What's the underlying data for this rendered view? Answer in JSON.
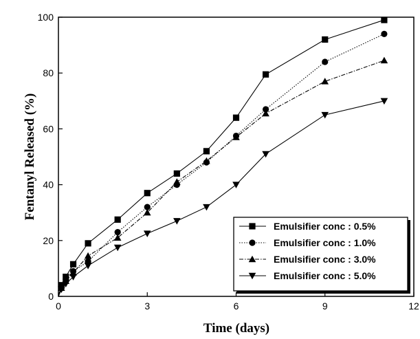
{
  "chart_data": {
    "type": "line",
    "title": "",
    "xlabel": "Time (days)",
    "ylabel": "Fentanyl Released (%)",
    "xlim": [
      0,
      12
    ],
    "ylim": [
      0,
      100
    ],
    "xticks": [
      0,
      3,
      6,
      9,
      12
    ],
    "yticks": [
      0,
      20,
      40,
      60,
      80,
      100
    ],
    "grid": false,
    "legend_position": "bottom-right",
    "series": [
      {
        "name": "Emulsifier conc : 0.5%",
        "marker": "square",
        "line_style": "solid",
        "color": "#000000",
        "x": [
          0,
          0.1,
          0.25,
          0.5,
          1,
          2,
          3,
          4,
          5,
          6,
          7,
          9,
          11
        ],
        "y": [
          0,
          4,
          7,
          11.5,
          19,
          27.5,
          37,
          44,
          52,
          64,
          79.5,
          92,
          99
        ]
      },
      {
        "name": "Emulsifier conc : 1.0%",
        "marker": "circle",
        "line_style": "dotted",
        "color": "#000000",
        "x": [
          0,
          0.1,
          0.25,
          0.5,
          1,
          2,
          3,
          4,
          5,
          6,
          7,
          9,
          11
        ],
        "y": [
          0,
          3,
          6,
          9,
          12.5,
          23,
          32,
          40,
          48,
          57.5,
          67,
          84,
          94
        ]
      },
      {
        "name": "Emulsifier conc : 3.0%",
        "marker": "triangle-up",
        "line_style": "dashdot",
        "color": "#000000",
        "x": [
          0,
          0.1,
          0.25,
          0.5,
          1,
          2,
          3,
          4,
          5,
          6,
          7,
          9,
          11
        ],
        "y": [
          0,
          3,
          5.5,
          8.5,
          14.5,
          21,
          30,
          41,
          48.5,
          57,
          65.5,
          77,
          84.5
        ]
      },
      {
        "name": "Emulsifier conc : 5.0%",
        "marker": "triangle-down",
        "line_style": "solid",
        "color": "#000000",
        "x": [
          0,
          0.1,
          0.25,
          0.5,
          1,
          2,
          3,
          4,
          5,
          6,
          7,
          9,
          11
        ],
        "y": [
          0,
          2.5,
          4.5,
          7,
          11,
          17.5,
          22.5,
          27,
          32,
          40,
          51,
          65,
          70
        ]
      }
    ]
  }
}
